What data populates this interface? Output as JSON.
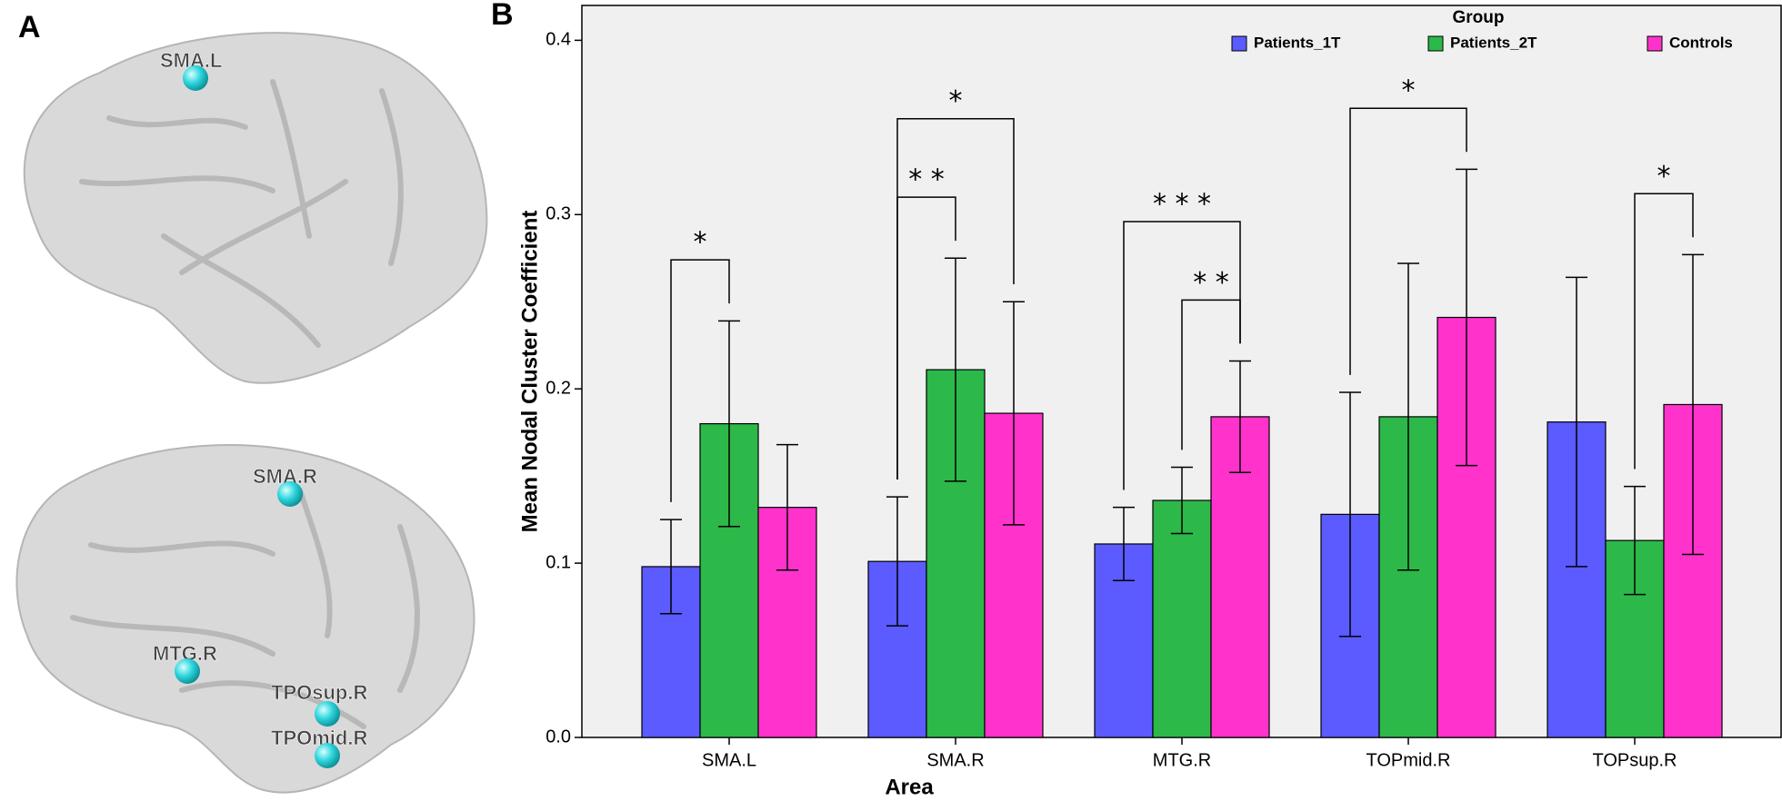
{
  "panel_labels": [
    "A",
    "B"
  ],
  "brain_nodes": [
    {
      "label": "SMA.L"
    },
    {
      "label": "SMA.R"
    },
    {
      "label": "MTG.R"
    },
    {
      "label": "TPOsup.R"
    },
    {
      "label": "TPOmid.R"
    }
  ],
  "chart_data": {
    "type": "bar",
    "x_label": "Area",
    "y_label": "Mean Nodal Cluster Coefficient",
    "legend_title": "Group",
    "legend": "top-right",
    "categories": [
      "SMA.L",
      "SMA.R",
      "MTG.R",
      "TOPmid.R",
      "TOPsup.R"
    ],
    "series": [
      {
        "name": "Patients_1T",
        "color": "#5b5bff",
        "values": [
          0.098,
          0.101,
          0.111,
          0.128,
          0.181
        ],
        "errors": [
          0.027,
          0.037,
          0.021,
          0.07,
          0.083
        ]
      },
      {
        "name": "Patients_2T",
        "color": "#2db84a",
        "values": [
          0.18,
          0.211,
          0.136,
          0.184,
          0.113
        ],
        "errors": [
          0.059,
          0.064,
          0.019,
          0.088,
          0.031
        ]
      },
      {
        "name": "Controls",
        "color": "#ff33cc",
        "values": [
          0.132,
          0.186,
          0.184,
          0.241,
          0.191
        ],
        "errors": [
          0.036,
          0.064,
          0.032,
          0.085,
          0.086
        ]
      }
    ],
    "ylim": [
      0,
      0.42
    ],
    "yticks": [
      {
        "value": 0,
        "label": "0.0"
      },
      0.1,
      0.2,
      0.3,
      0.4
    ],
    "annotations": [
      {
        "text": "*",
        "category": "SMA.L",
        "from": "Patients_1T",
        "to": "Patients_2T"
      },
      {
        "text": "* *",
        "category": "SMA.R",
        "from": "Patients_1T",
        "to": "Patients_2T"
      },
      {
        "text": "*",
        "category": "SMA.R",
        "from": "Patients_1T",
        "to": "Controls"
      },
      {
        "text": "* *",
        "category": "MTG.R",
        "from": "Patients_2T",
        "to": "Controls"
      },
      {
        "text": "* * *",
        "category": "MTG.R",
        "from": "Patients_1T",
        "to": "Controls"
      },
      {
        "text": "*",
        "category": "TOPmid.R",
        "from": "Patients_1T",
        "to": "Controls"
      },
      {
        "text": "*",
        "category": "TOPsup.R",
        "from": "Patients_2T",
        "to": "Controls"
      }
    ]
  }
}
